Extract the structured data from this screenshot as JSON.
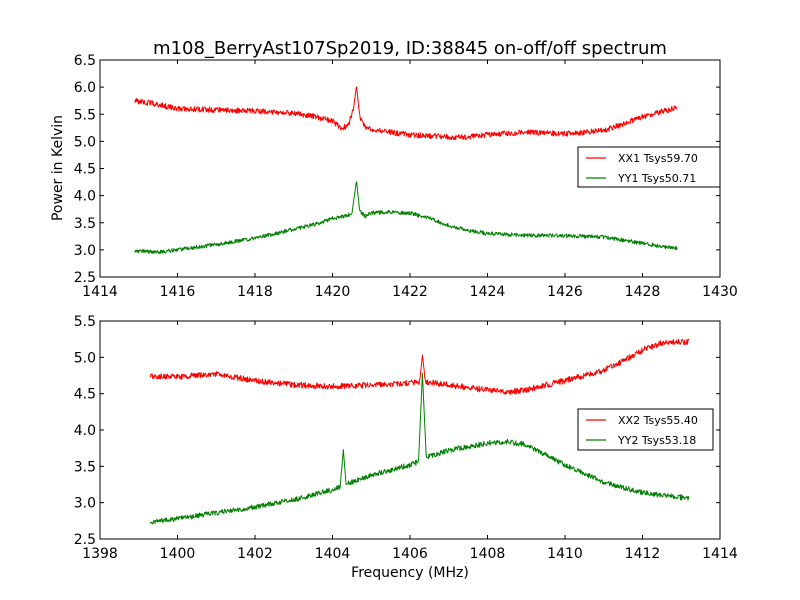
{
  "title": "m108_BerryAst107Sp2019, ID:38845 on-off/off spectrum",
  "ylabel": "Power in Kelvin",
  "xlabel": "Frequency (MHz)",
  "colors": {
    "xx": "#ff0000",
    "yy": "#008000"
  },
  "chart_data": [
    {
      "type": "line",
      "title": "m108_BerryAst107Sp2019, ID:38845 on-off/off spectrum",
      "xlabel": "",
      "ylabel": "Power in Kelvin",
      "xlim": [
        1414,
        1430
      ],
      "ylim": [
        2.5,
        6.5
      ],
      "xticks": [
        1414,
        1416,
        1418,
        1420,
        1422,
        1424,
        1426,
        1428,
        1430
      ],
      "yticks": [
        2.5,
        3.0,
        3.5,
        4.0,
        4.5,
        5.0,
        5.5,
        6.0,
        6.5
      ],
      "xtick_labels": [
        "1414",
        "1416",
        "1418",
        "1420",
        "1422",
        "1424",
        "1426",
        "1428",
        "1430"
      ],
      "ytick_labels": [
        "2.5",
        "3.0",
        "3.5",
        "4.0",
        "4.5",
        "5.0",
        "5.5",
        "6.0",
        "6.5"
      ],
      "grid": false,
      "legend_position": "right",
      "series": [
        {
          "name": "XX1 Tsys59.70",
          "color": "#ff0000",
          "noise": 0.05,
          "x": [
            1414.9,
            1415.5,
            1416,
            1417,
            1418,
            1419,
            1419.6,
            1420.0,
            1420.2,
            1420.4,
            1420.55,
            1420.62,
            1420.7,
            1420.85,
            1421.0,
            1421.5,
            1422,
            1422.5,
            1423,
            1423.5,
            1424,
            1425,
            1426,
            1427,
            1427.5,
            1428,
            1428.5,
            1428.9
          ],
          "y": [
            5.75,
            5.68,
            5.6,
            5.58,
            5.56,
            5.52,
            5.45,
            5.38,
            5.25,
            5.28,
            5.65,
            6.03,
            5.45,
            5.25,
            5.22,
            5.17,
            5.12,
            5.1,
            5.08,
            5.08,
            5.12,
            5.17,
            5.14,
            5.2,
            5.32,
            5.45,
            5.55,
            5.62
          ]
        },
        {
          "name": "YY1 Tsys50.71",
          "color": "#008000",
          "noise": 0.035,
          "x": [
            1414.9,
            1415.5,
            1416,
            1417,
            1418,
            1419,
            1419.6,
            1420.0,
            1420.3,
            1420.5,
            1420.62,
            1420.7,
            1420.85,
            1421.0,
            1421.5,
            1422,
            1422.5,
            1423,
            1423.5,
            1424,
            1425,
            1426,
            1427,
            1427.5,
            1428,
            1428.5,
            1428.9
          ],
          "y": [
            2.98,
            2.96,
            3.0,
            3.1,
            3.22,
            3.38,
            3.48,
            3.58,
            3.62,
            3.66,
            4.28,
            3.72,
            3.62,
            3.68,
            3.7,
            3.68,
            3.58,
            3.45,
            3.36,
            3.3,
            3.27,
            3.26,
            3.24,
            3.18,
            3.12,
            3.06,
            3.02
          ]
        }
      ]
    },
    {
      "type": "line",
      "title": "",
      "xlabel": "Frequency (MHz)",
      "ylabel": "",
      "xlim": [
        1398,
        1414
      ],
      "ylim": [
        2.5,
        5.5
      ],
      "xticks": [
        1398,
        1400,
        1402,
        1404,
        1406,
        1408,
        1410,
        1412,
        1414
      ],
      "yticks": [
        2.5,
        3.0,
        3.5,
        4.0,
        4.5,
        5.0,
        5.5
      ],
      "xtick_labels": [
        "1398",
        "1400",
        "1402",
        "1404",
        "1406",
        "1408",
        "1410",
        "1412",
        "1414"
      ],
      "ytick_labels": [
        "2.5",
        "3.0",
        "3.5",
        "4.0",
        "4.5",
        "5.0",
        "5.5"
      ],
      "grid": false,
      "legend_position": "right",
      "series": [
        {
          "name": "XX2 Tsys55.40",
          "color": "#ff0000",
          "noise": 0.04,
          "x": [
            1399.3,
            1400,
            1401,
            1402,
            1403,
            1404,
            1405,
            1406,
            1406.25,
            1406.32,
            1406.4,
            1407,
            1408,
            1408.5,
            1409,
            1409.5,
            1410,
            1411,
            1411.5,
            1412,
            1412.5,
            1413.2
          ],
          "y": [
            4.75,
            4.73,
            4.77,
            4.68,
            4.62,
            4.6,
            4.62,
            4.65,
            4.66,
            5.03,
            4.66,
            4.62,
            4.55,
            4.52,
            4.55,
            4.62,
            4.68,
            4.82,
            4.95,
            5.1,
            5.2,
            5.22
          ]
        },
        {
          "name": "YY2 Tsys53.18",
          "color": "#008000",
          "noise": 0.035,
          "x": [
            1399.3,
            1400,
            1401,
            1402,
            1403,
            1404,
            1404.2,
            1404.28,
            1404.35,
            1405,
            1406,
            1406.22,
            1406.32,
            1406.42,
            1407,
            1408,
            1408.5,
            1409,
            1410,
            1411,
            1412,
            1412.5,
            1413.2
          ],
          "y": [
            2.73,
            2.78,
            2.86,
            2.94,
            3.04,
            3.18,
            3.22,
            3.73,
            3.25,
            3.38,
            3.52,
            3.56,
            4.78,
            3.62,
            3.72,
            3.82,
            3.84,
            3.8,
            3.52,
            3.28,
            3.14,
            3.1,
            3.06
          ]
        }
      ]
    }
  ]
}
